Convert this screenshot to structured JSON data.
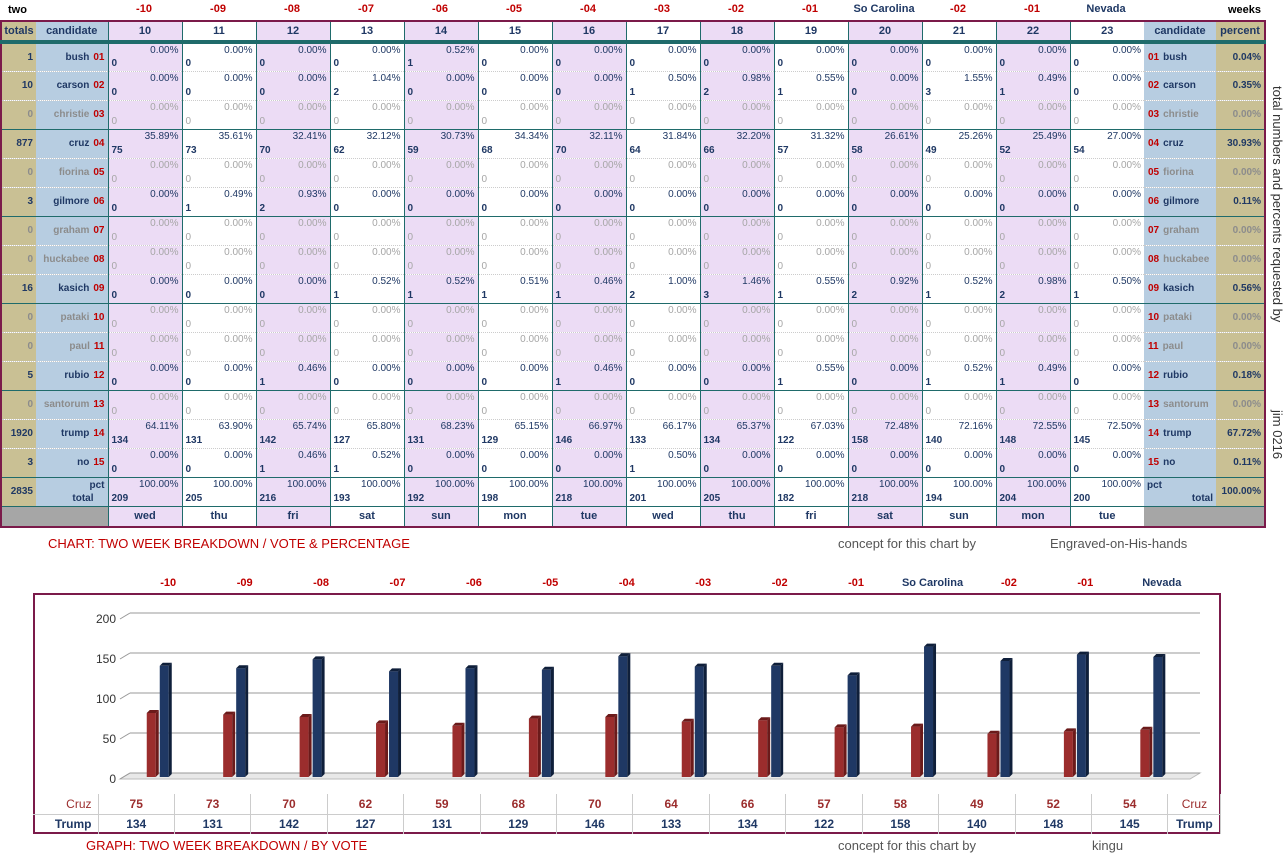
{
  "top_left_label": "two",
  "top_right_label": "weeks",
  "day_labels": [
    "-10",
    "-09",
    "-08",
    "-07",
    "-06",
    "-05",
    "-04",
    "-03",
    "-02",
    "-01",
    "So Carolina",
    "-02",
    "-01",
    "Nevada"
  ],
  "header": {
    "totals": "totals",
    "candidate": "candidate",
    "percent": "percent",
    "days": [
      "10",
      "11",
      "12",
      "13",
      "14",
      "15",
      "16",
      "17",
      "18",
      "19",
      "20",
      "21",
      "22",
      "23"
    ]
  },
  "weekdays": [
    "wed",
    "thu",
    "fri",
    "sat",
    "sun",
    "mon",
    "tue",
    "wed",
    "thu",
    "fri",
    "sat",
    "sun",
    "mon",
    "tue"
  ],
  "candidates": [
    {
      "name": "bush",
      "num": "01",
      "total": "1",
      "pct": "0.04%",
      "counts": [
        "0",
        "0",
        "0",
        "0",
        "1",
        "0",
        "0",
        "0",
        "0",
        "0",
        "0",
        "0",
        "0",
        "0"
      ],
      "pcts": [
        "0.00%",
        "0.00%",
        "0.00%",
        "0.00%",
        "0.52%",
        "0.00%",
        "0.00%",
        "0.00%",
        "0.00%",
        "0.00%",
        "0.00%",
        "0.00%",
        "0.00%",
        "0.00%"
      ]
    },
    {
      "name": "carson",
      "num": "02",
      "total": "10",
      "pct": "0.35%",
      "counts": [
        "0",
        "0",
        "0",
        "2",
        "0",
        "0",
        "0",
        "1",
        "2",
        "1",
        "0",
        "3",
        "1",
        "0"
      ],
      "pcts": [
        "0.00%",
        "0.00%",
        "0.00%",
        "1.04%",
        "0.00%",
        "0.00%",
        "0.00%",
        "0.50%",
        "0.98%",
        "0.55%",
        "0.00%",
        "1.55%",
        "0.49%",
        "0.00%"
      ]
    },
    {
      "name": "christie",
      "num": "03",
      "total": "0",
      "pct": "0.00%",
      "counts": [
        "0",
        "0",
        "0",
        "0",
        "0",
        "0",
        "0",
        "0",
        "0",
        "0",
        "0",
        "0",
        "0",
        "0"
      ],
      "pcts": [
        "0.00%",
        "0.00%",
        "0.00%",
        "0.00%",
        "0.00%",
        "0.00%",
        "0.00%",
        "0.00%",
        "0.00%",
        "0.00%",
        "0.00%",
        "0.00%",
        "0.00%",
        "0.00%"
      ]
    },
    {
      "name": "cruz",
      "num": "04",
      "total": "877",
      "pct": "30.93%",
      "counts": [
        "75",
        "73",
        "70",
        "62",
        "59",
        "68",
        "70",
        "64",
        "66",
        "57",
        "58",
        "49",
        "52",
        "54"
      ],
      "pcts": [
        "35.89%",
        "35.61%",
        "32.41%",
        "32.12%",
        "30.73%",
        "34.34%",
        "32.11%",
        "31.84%",
        "32.20%",
        "31.32%",
        "26.61%",
        "25.26%",
        "25.49%",
        "27.00%"
      ]
    },
    {
      "name": "fiorina",
      "num": "05",
      "total": "0",
      "pct": "0.00%",
      "counts": [
        "0",
        "0",
        "0",
        "0",
        "0",
        "0",
        "0",
        "0",
        "0",
        "0",
        "0",
        "0",
        "0",
        "0"
      ],
      "pcts": [
        "0.00%",
        "0.00%",
        "0.00%",
        "0.00%",
        "0.00%",
        "0.00%",
        "0.00%",
        "0.00%",
        "0.00%",
        "0.00%",
        "0.00%",
        "0.00%",
        "0.00%",
        "0.00%"
      ]
    },
    {
      "name": "gilmore",
      "num": "06",
      "total": "3",
      "pct": "0.11%",
      "counts": [
        "0",
        "1",
        "2",
        "0",
        "0",
        "0",
        "0",
        "0",
        "0",
        "0",
        "0",
        "0",
        "0",
        "0"
      ],
      "pcts": [
        "0.00%",
        "0.49%",
        "0.93%",
        "0.00%",
        "0.00%",
        "0.00%",
        "0.00%",
        "0.00%",
        "0.00%",
        "0.00%",
        "0.00%",
        "0.00%",
        "0.00%",
        "0.00%"
      ]
    },
    {
      "name": "graham",
      "num": "07",
      "total": "0",
      "pct": "0.00%",
      "counts": [
        "0",
        "0",
        "0",
        "0",
        "0",
        "0",
        "0",
        "0",
        "0",
        "0",
        "0",
        "0",
        "0",
        "0"
      ],
      "pcts": [
        "0.00%",
        "0.00%",
        "0.00%",
        "0.00%",
        "0.00%",
        "0.00%",
        "0.00%",
        "0.00%",
        "0.00%",
        "0.00%",
        "0.00%",
        "0.00%",
        "0.00%",
        "0.00%"
      ]
    },
    {
      "name": "huckabee",
      "num": "08",
      "total": "0",
      "pct": "0.00%",
      "counts": [
        "0",
        "0",
        "0",
        "0",
        "0",
        "0",
        "0",
        "0",
        "0",
        "0",
        "0",
        "0",
        "0",
        "0"
      ],
      "pcts": [
        "0.00%",
        "0.00%",
        "0.00%",
        "0.00%",
        "0.00%",
        "0.00%",
        "0.00%",
        "0.00%",
        "0.00%",
        "0.00%",
        "0.00%",
        "0.00%",
        "0.00%",
        "0.00%"
      ]
    },
    {
      "name": "kasich",
      "num": "09",
      "total": "16",
      "pct": "0.56%",
      "counts": [
        "0",
        "0",
        "0",
        "1",
        "1",
        "1",
        "1",
        "2",
        "3",
        "1",
        "2",
        "1",
        "2",
        "1"
      ],
      "pcts": [
        "0.00%",
        "0.00%",
        "0.00%",
        "0.52%",
        "0.52%",
        "0.51%",
        "0.46%",
        "1.00%",
        "1.46%",
        "0.55%",
        "0.92%",
        "0.52%",
        "0.98%",
        "0.50%"
      ]
    },
    {
      "name": "pataki",
      "num": "10",
      "total": "0",
      "pct": "0.00%",
      "counts": [
        "0",
        "0",
        "0",
        "0",
        "0",
        "0",
        "0",
        "0",
        "0",
        "0",
        "0",
        "0",
        "0",
        "0"
      ],
      "pcts": [
        "0.00%",
        "0.00%",
        "0.00%",
        "0.00%",
        "0.00%",
        "0.00%",
        "0.00%",
        "0.00%",
        "0.00%",
        "0.00%",
        "0.00%",
        "0.00%",
        "0.00%",
        "0.00%"
      ]
    },
    {
      "name": "paul",
      "num": "11",
      "total": "0",
      "pct": "0.00%",
      "counts": [
        "0",
        "0",
        "0",
        "0",
        "0",
        "0",
        "0",
        "0",
        "0",
        "0",
        "0",
        "0",
        "0",
        "0"
      ],
      "pcts": [
        "0.00%",
        "0.00%",
        "0.00%",
        "0.00%",
        "0.00%",
        "0.00%",
        "0.00%",
        "0.00%",
        "0.00%",
        "0.00%",
        "0.00%",
        "0.00%",
        "0.00%",
        "0.00%"
      ]
    },
    {
      "name": "rubio",
      "num": "12",
      "total": "5",
      "pct": "0.18%",
      "counts": [
        "0",
        "0",
        "1",
        "0",
        "0",
        "0",
        "1",
        "0",
        "0",
        "1",
        "0",
        "1",
        "1",
        "0"
      ],
      "pcts": [
        "0.00%",
        "0.00%",
        "0.46%",
        "0.00%",
        "0.00%",
        "0.00%",
        "0.46%",
        "0.00%",
        "0.00%",
        "0.55%",
        "0.00%",
        "0.52%",
        "0.49%",
        "0.00%"
      ]
    },
    {
      "name": "santorum",
      "num": "13",
      "total": "0",
      "pct": "0.00%",
      "counts": [
        "0",
        "0",
        "0",
        "0",
        "0",
        "0",
        "0",
        "0",
        "0",
        "0",
        "0",
        "0",
        "0",
        "0"
      ],
      "pcts": [
        "0.00%",
        "0.00%",
        "0.00%",
        "0.00%",
        "0.00%",
        "0.00%",
        "0.00%",
        "0.00%",
        "0.00%",
        "0.00%",
        "0.00%",
        "0.00%",
        "0.00%",
        "0.00%"
      ]
    },
    {
      "name": "trump",
      "num": "14",
      "total": "1920",
      "pct": "67.72%",
      "counts": [
        "134",
        "131",
        "142",
        "127",
        "131",
        "129",
        "146",
        "133",
        "134",
        "122",
        "158",
        "140",
        "148",
        "145"
      ],
      "pcts": [
        "64.11%",
        "63.90%",
        "65.74%",
        "65.80%",
        "68.23%",
        "65.15%",
        "66.97%",
        "66.17%",
        "65.37%",
        "67.03%",
        "72.48%",
        "72.16%",
        "72.55%",
        "72.50%"
      ]
    },
    {
      "name": "no",
      "num": "15",
      "total": "3",
      "pct": "0.11%",
      "counts": [
        "0",
        "0",
        "1",
        "1",
        "0",
        "0",
        "0",
        "1",
        "0",
        "0",
        "0",
        "0",
        "0",
        "0"
      ],
      "pcts": [
        "0.00%",
        "0.00%",
        "0.46%",
        "0.52%",
        "0.00%",
        "0.00%",
        "0.00%",
        "0.50%",
        "0.00%",
        "0.00%",
        "0.00%",
        "0.00%",
        "0.00%",
        "0.00%"
      ]
    }
  ],
  "totals_row": {
    "total": "2835",
    "pct_label": "pct",
    "label": "total",
    "grand_pct": "100.00%",
    "counts": [
      "209",
      "205",
      "216",
      "193",
      "192",
      "198",
      "218",
      "201",
      "205",
      "182",
      "218",
      "194",
      "204",
      "200"
    ],
    "pcts": [
      "100.00%",
      "100.00%",
      "100.00%",
      "100.00%",
      "100.00%",
      "100.00%",
      "100.00%",
      "100.00%",
      "100.00%",
      "100.00%",
      "100.00%",
      "100.00%",
      "100.00%",
      "100.00%"
    ]
  },
  "side_text_1": "total numbers and percents requested by",
  "side_text_2": "jim 0216",
  "caption_table": "CHART: TWO WEEK BREAKDOWN / VOTE & PERCENTAGE",
  "concept_1": "concept for this chart by",
  "author_1": "Engraved-on-His-hands",
  "caption_graph": "GRAPH: TWO WEEK BREAKDOWN / BY VOTE",
  "concept_2": "concept for this chart by",
  "author_2": "kingu",
  "chart_data": {
    "type": "bar",
    "categories": [
      "-10",
      "-09",
      "-08",
      "-07",
      "-06",
      "-05",
      "-04",
      "-03",
      "-02",
      "-01",
      "So Carolina",
      "-02",
      "-01",
      "Nevada"
    ],
    "series": [
      {
        "name": "Cruz",
        "values": [
          75,
          73,
          70,
          62,
          59,
          68,
          70,
          64,
          66,
          57,
          58,
          49,
          52,
          54
        ]
      },
      {
        "name": "Trump",
        "values": [
          134,
          131,
          142,
          127,
          131,
          129,
          146,
          133,
          134,
          122,
          158,
          140,
          148,
          145
        ]
      }
    ],
    "ylim": [
      0,
      200
    ],
    "yticks": [
      "0",
      "50",
      "100",
      "150",
      "200"
    ],
    "grid": true,
    "colors": {
      "Cruz": "#9b2d2d",
      "Trump": "#1f3864"
    }
  }
}
